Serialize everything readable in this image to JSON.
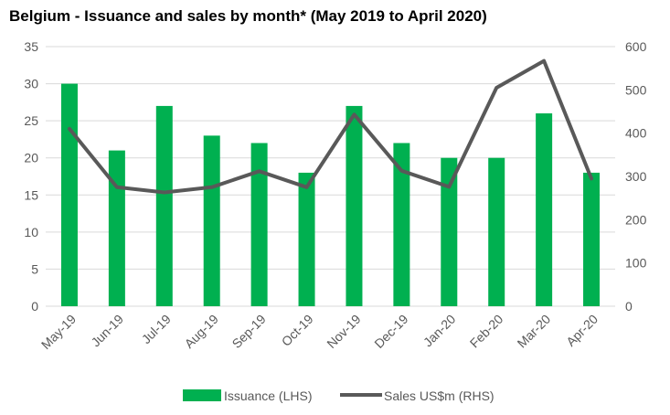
{
  "chart_data": {
    "type": "bar",
    "title": "Belgium - Issuance and sales by month* (May 2019 to April 2020)",
    "categories": [
      "May-19",
      "Jun-19",
      "Jul-19",
      "Aug-19",
      "Sep-19",
      "Oct-19",
      "Nov-19",
      "Dec-19",
      "Jan-20",
      "Feb-20",
      "Mar-20",
      "Apr-20"
    ],
    "series": [
      {
        "name": "Issuance (LHS)",
        "type": "bar",
        "axis": "left",
        "color": "#00B050",
        "values": [
          30,
          21,
          27,
          23,
          22,
          18,
          27,
          22,
          20,
          20,
          26,
          18
        ]
      },
      {
        "name": "Sales US$m (RHS)",
        "type": "line",
        "axis": "right",
        "color": "#595959",
        "values": [
          410,
          275,
          263,
          275,
          312,
          275,
          443,
          313,
          276,
          505,
          567,
          295
        ]
      }
    ],
    "yleft": {
      "min": 0,
      "max": 35,
      "step": 5,
      "ticks": [
        "0",
        "5",
        "10",
        "15",
        "20",
        "25",
        "30",
        "35"
      ]
    },
    "yright": {
      "min": 0,
      "max": 600,
      "step": 100,
      "ticks": [
        "0",
        "100",
        "200",
        "300",
        "400",
        "500",
        "600"
      ]
    },
    "grid": true,
    "legend_position": "bottom"
  }
}
